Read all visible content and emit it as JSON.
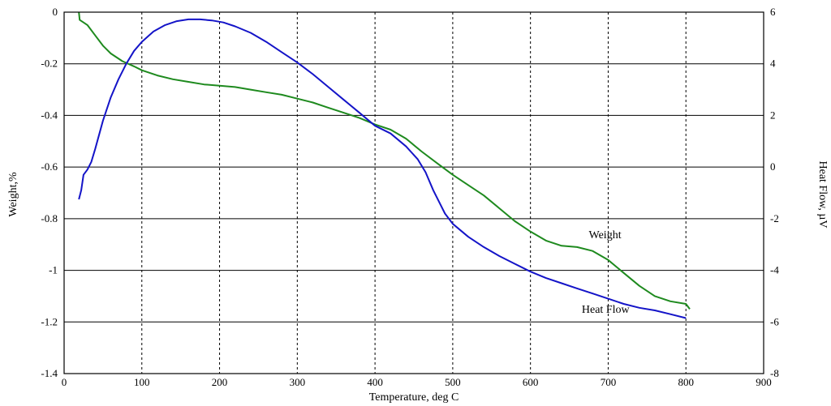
{
  "chart_data": {
    "type": "line",
    "xlabel": "Temperature, deg C",
    "ylabel_left": "Weight,%",
    "ylabel_right": "Heat Flow, µV",
    "xlim": [
      0,
      900
    ],
    "ylim_left": [
      -1.4,
      0
    ],
    "ylim_right": [
      -8,
      6
    ],
    "x_ticks": [
      "0",
      "100",
      "200",
      "300",
      "400",
      "500",
      "600",
      "700",
      "800",
      "900"
    ],
    "y_ticks_left": [
      "0",
      "-0.2",
      "-0.4",
      "-0.6",
      "-0.8",
      "-1",
      "-1.2",
      "-1.4"
    ],
    "y_ticks_right": [
      "6",
      "4",
      "2",
      "0",
      "-2",
      "-4",
      "-6",
      "-8"
    ],
    "grid": true,
    "series": [
      {
        "name": "Weight",
        "axis": "left",
        "color": "#1e8a1e",
        "points": [
          [
            19,
            0
          ],
          [
            20,
            -0.03
          ],
          [
            25,
            -0.04
          ],
          [
            30,
            -0.05
          ],
          [
            40,
            -0.09
          ],
          [
            50,
            -0.13
          ],
          [
            60,
            -0.16
          ],
          [
            75,
            -0.19
          ],
          [
            90,
            -0.21
          ],
          [
            100,
            -0.225
          ],
          [
            120,
            -0.245
          ],
          [
            140,
            -0.26
          ],
          [
            160,
            -0.27
          ],
          [
            180,
            -0.28
          ],
          [
            200,
            -0.285
          ],
          [
            220,
            -0.29
          ],
          [
            240,
            -0.3
          ],
          [
            260,
            -0.31
          ],
          [
            280,
            -0.32
          ],
          [
            300,
            -0.335
          ],
          [
            320,
            -0.35
          ],
          [
            340,
            -0.37
          ],
          [
            360,
            -0.39
          ],
          [
            380,
            -0.41
          ],
          [
            400,
            -0.435
          ],
          [
            420,
            -0.455
          ],
          [
            440,
            -0.49
          ],
          [
            460,
            -0.54
          ],
          [
            480,
            -0.585
          ],
          [
            500,
            -0.63
          ],
          [
            520,
            -0.67
          ],
          [
            540,
            -0.71
          ],
          [
            560,
            -0.76
          ],
          [
            580,
            -0.81
          ],
          [
            600,
            -0.85
          ],
          [
            620,
            -0.885
          ],
          [
            640,
            -0.905
          ],
          [
            660,
            -0.91
          ],
          [
            680,
            -0.925
          ],
          [
            700,
            -0.96
          ],
          [
            720,
            -1.01
          ],
          [
            740,
            -1.06
          ],
          [
            760,
            -1.1
          ],
          [
            780,
            -1.12
          ],
          [
            800,
            -1.13
          ],
          [
            805,
            -1.15
          ]
        ]
      },
      {
        "name": "Heat Flow",
        "axis": "right",
        "color": "#1414c8",
        "points": [
          [
            19,
            -1.25
          ],
          [
            22,
            -0.9
          ],
          [
            25,
            -0.3
          ],
          [
            30,
            -0.1
          ],
          [
            35,
            0.2
          ],
          [
            40,
            0.7
          ],
          [
            50,
            1.8
          ],
          [
            60,
            2.7
          ],
          [
            70,
            3.4
          ],
          [
            80,
            4.0
          ],
          [
            90,
            4.5
          ],
          [
            100,
            4.85
          ],
          [
            115,
            5.25
          ],
          [
            130,
            5.5
          ],
          [
            145,
            5.65
          ],
          [
            160,
            5.72
          ],
          [
            175,
            5.72
          ],
          [
            190,
            5.68
          ],
          [
            205,
            5.6
          ],
          [
            220,
            5.45
          ],
          [
            240,
            5.2
          ],
          [
            260,
            4.85
          ],
          [
            280,
            4.45
          ],
          [
            300,
            4.05
          ],
          [
            320,
            3.6
          ],
          [
            340,
            3.1
          ],
          [
            360,
            2.6
          ],
          [
            380,
            2.1
          ],
          [
            400,
            1.6
          ],
          [
            420,
            1.3
          ],
          [
            440,
            0.8
          ],
          [
            455,
            0.3
          ],
          [
            465,
            -0.2
          ],
          [
            475,
            -0.9
          ],
          [
            490,
            -1.8
          ],
          [
            500,
            -2.2
          ],
          [
            520,
            -2.7
          ],
          [
            540,
            -3.1
          ],
          [
            560,
            -3.45
          ],
          [
            580,
            -3.75
          ],
          [
            600,
            -4.05
          ],
          [
            620,
            -4.3
          ],
          [
            640,
            -4.5
          ],
          [
            660,
            -4.7
          ],
          [
            680,
            -4.9
          ],
          [
            700,
            -5.1
          ],
          [
            720,
            -5.3
          ],
          [
            740,
            -5.45
          ],
          [
            760,
            -5.55
          ],
          [
            780,
            -5.7
          ],
          [
            800,
            -5.85
          ]
        ]
      }
    ],
    "annotations": [
      {
        "text": "Weight",
        "series": "Weight",
        "x": 675,
        "y_left": -0.875
      },
      {
        "text": "Heat Flow",
        "series": "Heat Flow",
        "x": 666,
        "y_left": -1.165
      }
    ]
  }
}
